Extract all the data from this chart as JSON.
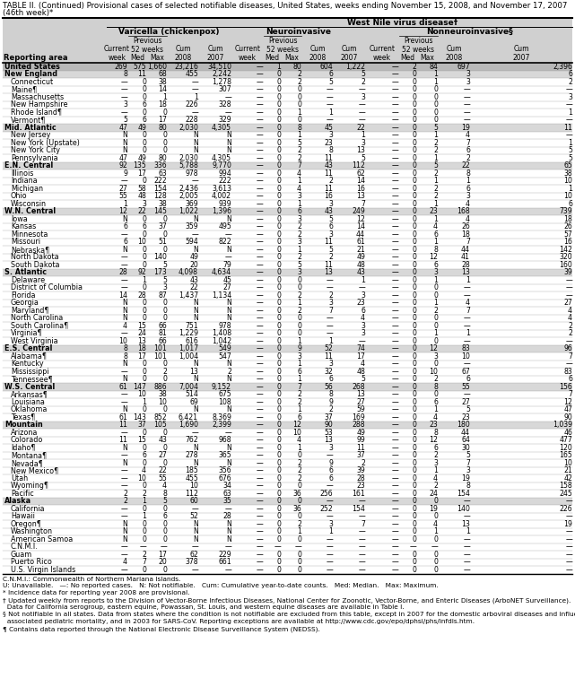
{
  "title_line1": "TABLE II. (Continued) Provisional cases of selected notifiable diseases, United States, weeks ending November 15, 2008, and November 17, 2007",
  "title_line2": "(46th week)*",
  "col_group1": "Varicella (chickenpox)",
  "col_group2": "West Nile virus disease†",
  "col_group2a": "Neuroinvasive",
  "col_group2b": "Nonneuroinvasive§",
  "footer_lines": [
    "C.N.M.I.: Commonwealth of Northern Mariana Islands.",
    "U: Unavailable.   —: No reported cases.   N: Not notifiable.   Cum: Cumulative year-to-date counts.   Med: Median.   Max: Maximum.",
    "* Incidence data for reporting year 2008 are provisional.",
    "† Updated weekly from reports to the Division of Vector-Borne Infectious Diseases, National Center for Zoonotic, Vector-Borne, and Enteric Diseases (ArboNET Surveillance).",
    "  Data for California serogroup, eastern equine, Powassan, St. Louis, and western equine diseases are available in Table I.",
    "§ Not notifiable in all states. Data from states where the condition is not notifiable are excluded from this table, except in 2007 for the domestic arboviral diseases and influenza-",
    "  associated pediatric mortality, and in 2003 for SARS-CoV. Reporting exceptions are available at http://www.cdc.gov/epo/dphsi/phs/infdis.htm.",
    "¶ Contains data reported through the National Electronic Disease Surveillance System (NEDSS)."
  ],
  "rows": [
    [
      "United States",
      "269",
      "575",
      "1,660",
      "23,216",
      "34,510",
      "—",
      "1",
      "80",
      "604",
      "1,222",
      "—",
      "2",
      "84",
      "697",
      "2,396"
    ],
    [
      "New England",
      "8",
      "11",
      "68",
      "455",
      "2,242",
      "—",
      "0",
      "2",
      "6",
      "5",
      "—",
      "0",
      "1",
      "3",
      "6"
    ],
    [
      "Connecticut",
      "—",
      "0",
      "38",
      "—",
      "1,278",
      "—",
      "0",
      "2",
      "5",
      "2",
      "—",
      "0",
      "1",
      "3",
      "2"
    ],
    [
      "Maine¶",
      "—",
      "0",
      "14",
      "—",
      "307",
      "—",
      "0",
      "0",
      "—",
      "—",
      "—",
      "0",
      "0",
      "—",
      "—"
    ],
    [
      "Massachusetts",
      "—",
      "0",
      "1",
      "1",
      "—",
      "—",
      "0",
      "0",
      "—",
      "3",
      "—",
      "0",
      "0",
      "—",
      "3"
    ],
    [
      "New Hampshire",
      "3",
      "6",
      "18",
      "226",
      "328",
      "—",
      "0",
      "0",
      "—",
      "—",
      "—",
      "0",
      "0",
      "—",
      "—"
    ],
    [
      "Rhode Island¶",
      "—",
      "0",
      "0",
      "—",
      "—",
      "—",
      "0",
      "1",
      "1",
      "—",
      "—",
      "0",
      "0",
      "—",
      "1"
    ],
    [
      "Vermont¶",
      "5",
      "6",
      "17",
      "228",
      "329",
      "—",
      "0",
      "0",
      "—",
      "—",
      "—",
      "0",
      "0",
      "—",
      "—"
    ],
    [
      "Mid. Atlantic",
      "47",
      "49",
      "80",
      "2,030",
      "4,305",
      "—",
      "0",
      "8",
      "45",
      "22",
      "—",
      "0",
      "5",
      "19",
      "11"
    ],
    [
      "New Jersey",
      "N",
      "0",
      "0",
      "N",
      "N",
      "—",
      "0",
      "1",
      "3",
      "1",
      "—",
      "0",
      "1",
      "4",
      "—"
    ],
    [
      "New York (Upstate)",
      "N",
      "0",
      "0",
      "N",
      "N",
      "—",
      "0",
      "5",
      "23",
      "3",
      "—",
      "0",
      "2",
      "7",
      "1"
    ],
    [
      "New York City",
      "N",
      "0",
      "0",
      "N",
      "N",
      "—",
      "0",
      "2",
      "8",
      "13",
      "—",
      "0",
      "2",
      "6",
      "5"
    ],
    [
      "Pennsylvania",
      "47",
      "49",
      "80",
      "2,030",
      "4,305",
      "—",
      "0",
      "2",
      "11",
      "5",
      "—",
      "0",
      "1",
      "2",
      "5"
    ],
    [
      "E.N. Central",
      "92",
      "135",
      "336",
      "5,788",
      "9,770",
      "—",
      "0",
      "7",
      "43",
      "112",
      "—",
      "0",
      "5",
      "22",
      "65"
    ],
    [
      "Illinois",
      "9",
      "17",
      "63",
      "978",
      "994",
      "—",
      "0",
      "4",
      "11",
      "62",
      "—",
      "0",
      "2",
      "8",
      "38"
    ],
    [
      "Indiana",
      "—",
      "0",
      "222",
      "—",
      "222",
      "—",
      "0",
      "1",
      "2",
      "14",
      "—",
      "0",
      "1",
      "1",
      "10"
    ],
    [
      "Michigan",
      "27",
      "58",
      "154",
      "2,436",
      "3,613",
      "—",
      "0",
      "4",
      "11",
      "16",
      "—",
      "0",
      "2",
      "6",
      "1"
    ],
    [
      "Ohio",
      "55",
      "48",
      "128",
      "2,005",
      "4,002",
      "—",
      "0",
      "3",
      "16",
      "13",
      "—",
      "0",
      "2",
      "3",
      "10"
    ],
    [
      "Wisconsin",
      "1",
      "3",
      "38",
      "369",
      "939",
      "—",
      "0",
      "1",
      "3",
      "7",
      "—",
      "0",
      "1",
      "4",
      "6"
    ],
    [
      "W.N. Central",
      "12",
      "22",
      "145",
      "1,022",
      "1,396",
      "—",
      "0",
      "6",
      "43",
      "249",
      "—",
      "0",
      "23",
      "168",
      "739"
    ],
    [
      "Iowa",
      "N",
      "0",
      "0",
      "N",
      "N",
      "—",
      "0",
      "3",
      "5",
      "12",
      "—",
      "0",
      "1",
      "4",
      "18"
    ],
    [
      "Kansas",
      "6",
      "6",
      "37",
      "359",
      "495",
      "—",
      "0",
      "2",
      "6",
      "14",
      "—",
      "0",
      "4",
      "26",
      "26"
    ],
    [
      "Minnesota",
      "—",
      "0",
      "0",
      "—",
      "—",
      "—",
      "0",
      "2",
      "3",
      "44",
      "—",
      "0",
      "6",
      "18",
      "57"
    ],
    [
      "Missouri",
      "6",
      "10",
      "51",
      "594",
      "822",
      "—",
      "0",
      "3",
      "11",
      "61",
      "—",
      "0",
      "1",
      "7",
      "16"
    ],
    [
      "Nebraska¶",
      "N",
      "0",
      "0",
      "N",
      "N",
      "—",
      "0",
      "1",
      "5",
      "21",
      "—",
      "0",
      "8",
      "44",
      "142"
    ],
    [
      "North Dakota",
      "—",
      "0",
      "140",
      "49",
      "—",
      "—",
      "0",
      "2",
      "2",
      "49",
      "—",
      "0",
      "12",
      "41",
      "320"
    ],
    [
      "South Dakota",
      "—",
      "0",
      "5",
      "20",
      "79",
      "—",
      "0",
      "5",
      "11",
      "48",
      "—",
      "0",
      "6",
      "28",
      "160"
    ],
    [
      "S. Atlantic",
      "28",
      "92",
      "173",
      "4,098",
      "4,634",
      "—",
      "0",
      "3",
      "13",
      "43",
      "—",
      "0",
      "3",
      "13",
      "39"
    ],
    [
      "Delaware",
      "—",
      "1",
      "5",
      "43",
      "45",
      "—",
      "0",
      "0",
      "—",
      "1",
      "—",
      "0",
      "1",
      "1",
      "—"
    ],
    [
      "District of Columbia",
      "—",
      "0",
      "3",
      "22",
      "27",
      "—",
      "0",
      "0",
      "—",
      "—",
      "—",
      "0",
      "0",
      "—",
      "—"
    ],
    [
      "Florida",
      "14",
      "28",
      "87",
      "1,437",
      "1,134",
      "—",
      "0",
      "2",
      "2",
      "3",
      "—",
      "0",
      "0",
      "—",
      "—"
    ],
    [
      "Georgia",
      "N",
      "0",
      "0",
      "N",
      "N",
      "—",
      "0",
      "1",
      "3",
      "23",
      "—",
      "0",
      "1",
      "4",
      "27"
    ],
    [
      "Maryland¶",
      "N",
      "0",
      "0",
      "N",
      "N",
      "—",
      "0",
      "2",
      "7",
      "6",
      "—",
      "0",
      "2",
      "7",
      "4"
    ],
    [
      "North Carolina",
      "N",
      "0",
      "0",
      "N",
      "N",
      "—",
      "0",
      "0",
      "—",
      "4",
      "—",
      "0",
      "0",
      "—",
      "4"
    ],
    [
      "South Carolina¶",
      "4",
      "15",
      "66",
      "751",
      "978",
      "—",
      "0",
      "0",
      "—",
      "3",
      "—",
      "0",
      "0",
      "—",
      "2"
    ],
    [
      "Virginia¶",
      "—",
      "24",
      "81",
      "1,229",
      "1,408",
      "—",
      "0",
      "0",
      "—",
      "3",
      "—",
      "0",
      "1",
      "1",
      "2"
    ],
    [
      "West Virginia",
      "10",
      "13",
      "66",
      "616",
      "1,042",
      "—",
      "0",
      "1",
      "1",
      "—",
      "—",
      "0",
      "0",
      "—",
      "—"
    ],
    [
      "E.S. Central",
      "8",
      "18",
      "101",
      "1,017",
      "549",
      "—",
      "0",
      "9",
      "52",
      "74",
      "—",
      "0",
      "12",
      "83",
      "96"
    ],
    [
      "Alabama¶",
      "8",
      "17",
      "101",
      "1,004",
      "547",
      "—",
      "0",
      "3",
      "11",
      "17",
      "—",
      "0",
      "3",
      "10",
      "7"
    ],
    [
      "Kentucky",
      "N",
      "0",
      "0",
      "N",
      "N",
      "—",
      "0",
      "1",
      "3",
      "4",
      "—",
      "0",
      "0",
      "—",
      "—"
    ],
    [
      "Mississippi",
      "—",
      "0",
      "2",
      "13",
      "2",
      "—",
      "0",
      "6",
      "32",
      "48",
      "—",
      "0",
      "10",
      "67",
      "83"
    ],
    [
      "Tennessee¶",
      "N",
      "0",
      "0",
      "N",
      "N",
      "—",
      "0",
      "1",
      "6",
      "5",
      "—",
      "0",
      "2",
      "6",
      "6"
    ],
    [
      "W.S. Central",
      "61",
      "147",
      "886",
      "7,004",
      "9,152",
      "—",
      "0",
      "7",
      "56",
      "268",
      "—",
      "0",
      "8",
      "55",
      "156"
    ],
    [
      "Arkansas¶",
      "—",
      "10",
      "38",
      "514",
      "675",
      "—",
      "0",
      "2",
      "8",
      "13",
      "—",
      "0",
      "0",
      "—",
      "7"
    ],
    [
      "Louisiana",
      "—",
      "1",
      "10",
      "69",
      "108",
      "—",
      "0",
      "2",
      "9",
      "27",
      "—",
      "0",
      "6",
      "27",
      "12"
    ],
    [
      "Oklahoma",
      "N",
      "0",
      "0",
      "N",
      "N",
      "—",
      "0",
      "1",
      "2",
      "59",
      "—",
      "0",
      "1",
      "5",
      "47"
    ],
    [
      "Texas¶",
      "61",
      "143",
      "852",
      "6,421",
      "8,369",
      "—",
      "0",
      "6",
      "37",
      "169",
      "—",
      "0",
      "4",
      "23",
      "90"
    ],
    [
      "Mountain",
      "11",
      "37",
      "105",
      "1,690",
      "2,399",
      "—",
      "0",
      "12",
      "90",
      "288",
      "—",
      "0",
      "23",
      "180",
      "1,039"
    ],
    [
      "Arizona",
      "—",
      "0",
      "0",
      "—",
      "—",
      "—",
      "0",
      "10",
      "53",
      "49",
      "—",
      "0",
      "8",
      "44",
      "46"
    ],
    [
      "Colorado",
      "11",
      "15",
      "43",
      "762",
      "968",
      "—",
      "0",
      "4",
      "13",
      "99",
      "—",
      "0",
      "12",
      "64",
      "477"
    ],
    [
      "Idaho¶",
      "N",
      "0",
      "0",
      "N",
      "N",
      "—",
      "0",
      "1",
      "3",
      "11",
      "—",
      "0",
      "6",
      "30",
      "120"
    ],
    [
      "Montana¶",
      "—",
      "6",
      "27",
      "278",
      "365",
      "—",
      "0",
      "0",
      "—",
      "37",
      "—",
      "0",
      "2",
      "5",
      "165"
    ],
    [
      "Nevada¶",
      "N",
      "0",
      "0",
      "N",
      "N",
      "—",
      "0",
      "2",
      "9",
      "2",
      "—",
      "0",
      "3",
      "7",
      "10"
    ],
    [
      "New Mexico¶",
      "—",
      "4",
      "22",
      "185",
      "356",
      "—",
      "0",
      "2",
      "6",
      "39",
      "—",
      "0",
      "1",
      "3",
      "21"
    ],
    [
      "Utah",
      "—",
      "10",
      "55",
      "455",
      "676",
      "—",
      "0",
      "2",
      "6",
      "28",
      "—",
      "0",
      "4",
      "19",
      "42"
    ],
    [
      "Wyoming¶",
      "—",
      "0",
      "4",
      "10",
      "34",
      "—",
      "0",
      "0",
      "—",
      "23",
      "—",
      "0",
      "2",
      "8",
      "158"
    ],
    [
      "Pacific",
      "2",
      "2",
      "8",
      "112",
      "63",
      "—",
      "0",
      "36",
      "256",
      "161",
      "—",
      "0",
      "24",
      "154",
      "245"
    ],
    [
      "Alaska",
      "2",
      "1",
      "5",
      "60",
      "35",
      "—",
      "0",
      "0",
      "—",
      "—",
      "—",
      "0",
      "0",
      "—",
      "—"
    ],
    [
      "California",
      "—",
      "0",
      "0",
      "—",
      "—",
      "—",
      "0",
      "36",
      "252",
      "154",
      "—",
      "0",
      "19",
      "140",
      "226"
    ],
    [
      "Hawaii",
      "—",
      "1",
      "6",
      "52",
      "28",
      "—",
      "0",
      "0",
      "—",
      "—",
      "—",
      "0",
      "0",
      "—",
      "—"
    ],
    [
      "Oregon¶",
      "N",
      "0",
      "0",
      "N",
      "N",
      "—",
      "0",
      "2",
      "3",
      "7",
      "—",
      "0",
      "4",
      "13",
      "19"
    ],
    [
      "Washington",
      "N",
      "0",
      "0",
      "N",
      "N",
      "—",
      "0",
      "1",
      "1",
      "—",
      "—",
      "0",
      "1",
      "1",
      "—"
    ],
    [
      "American Samoa",
      "N",
      "0",
      "0",
      "N",
      "N",
      "—",
      "0",
      "0",
      "—",
      "—",
      "—",
      "0",
      "0",
      "—",
      "—"
    ],
    [
      "C.N.M.I.",
      "—",
      "—",
      "—",
      "—",
      "—",
      "—",
      "—",
      "—",
      "—",
      "—",
      "—",
      "—",
      "—",
      "—",
      "—"
    ],
    [
      "Guam",
      "—",
      "2",
      "17",
      "62",
      "229",
      "—",
      "0",
      "0",
      "—",
      "—",
      "—",
      "0",
      "0",
      "—",
      "—"
    ],
    [
      "Puerto Rico",
      "4",
      "7",
      "20",
      "378",
      "661",
      "—",
      "0",
      "0",
      "—",
      "—",
      "—",
      "0",
      "0",
      "—",
      "—"
    ],
    [
      "U.S. Virgin Islands",
      "—",
      "0",
      "0",
      "—",
      "—",
      "—",
      "0",
      "0",
      "—",
      "—",
      "—",
      "0",
      "0",
      "—",
      "—"
    ]
  ],
  "region_indices": [
    1,
    8,
    13,
    19,
    27,
    37,
    42,
    47,
    57
  ],
  "us_index": 0
}
